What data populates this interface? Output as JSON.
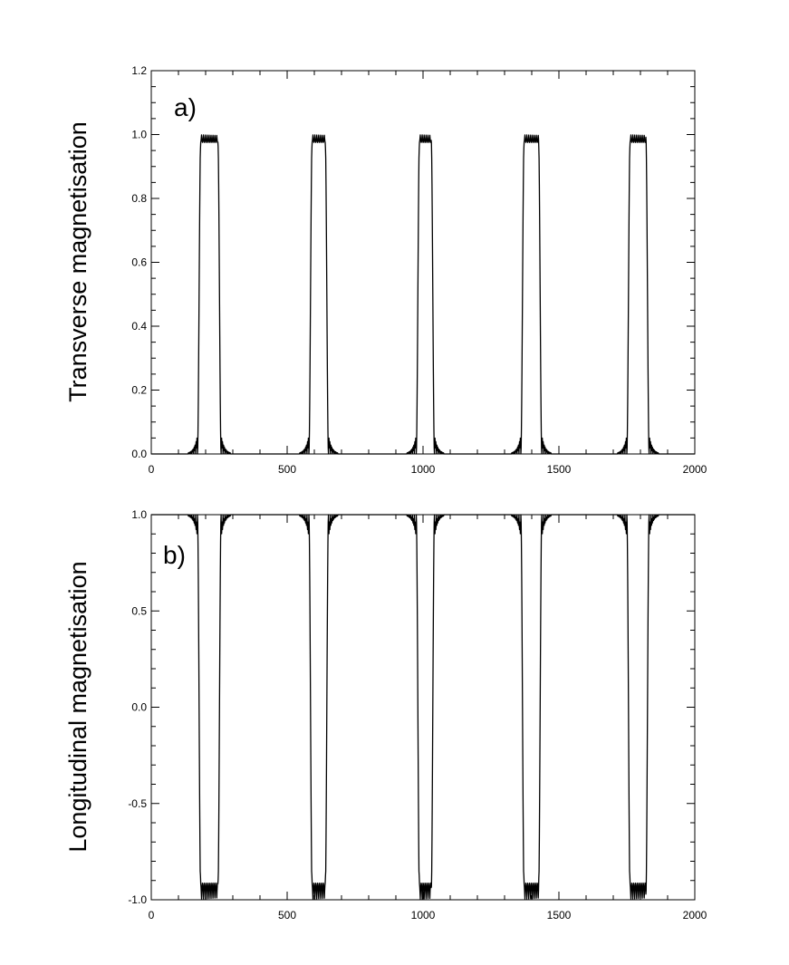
{
  "chart_data": [
    {
      "type": "line",
      "panel_label": "a)",
      "ylabel": "Transverse magnetisation",
      "xlabel": "",
      "xlim": [
        0,
        2000
      ],
      "ylim": [
        0,
        1.2
      ],
      "xticks": [
        0,
        500,
        1000,
        1500,
        2000
      ],
      "xtick_labels": [
        "0",
        "500",
        "1000",
        "1500",
        "2000"
      ],
      "yticks": [
        0,
        0.2,
        0.4,
        0.6,
        0.8,
        1.0,
        1.2
      ],
      "ytick_labels": [
        "0.0",
        "0.2",
        "0.4",
        "0.6",
        "0.8",
        "1.0",
        "1.2"
      ],
      "baseline": 0.0,
      "peak_level": 1.0,
      "pulses": [
        {
          "start": 150,
          "end": 275
        },
        {
          "start": 560,
          "end": 670
        },
        {
          "start": 955,
          "end": 1060
        },
        {
          "start": 1340,
          "end": 1455
        },
        {
          "start": 1730,
          "end": 1850
        }
      ],
      "series": [
        {
          "x": [
            0,
            100,
            160,
            175,
            185,
            200,
            215,
            230,
            240,
            255,
            265,
            275,
            300,
            400,
            500,
            545,
            560,
            570,
            580,
            600,
            620,
            645,
            655,
            665,
            675,
            700,
            850,
            940,
            955,
            960,
            970,
            990,
            1010,
            1040,
            1050,
            1060,
            1070,
            1100,
            1300,
            1330,
            1345,
            1350,
            1365,
            1380,
            1400,
            1420,
            1435,
            1445,
            1455,
            1480,
            1650,
            1720,
            1740,
            1745,
            1760,
            1775,
            1795,
            1815,
            1830,
            1840,
            1850,
            1870,
            2000
          ],
          "y": [
            0.0,
            0.01,
            0.04,
            0.08,
            0.55,
            0.99,
            1.0,
            1.0,
            1.0,
            0.99,
            0.55,
            0.07,
            0.02,
            0.0,
            0.01,
            0.04,
            0.08,
            0.55,
            0.99,
            1.0,
            1.0,
            0.99,
            0.55,
            0.08,
            0.03,
            0.0,
            0.0,
            0.02,
            0.05,
            0.5,
            0.99,
            1.0,
            1.0,
            0.99,
            0.55,
            0.05,
            0.02,
            0.0,
            0.0,
            0.02,
            0.06,
            0.5,
            0.99,
            1.0,
            1.0,
            0.99,
            0.55,
            0.07,
            0.02,
            0.0,
            0.0,
            0.04,
            0.08,
            0.5,
            0.99,
            1.0,
            1.0,
            0.99,
            0.55,
            0.08,
            0.04,
            0.01,
            0.0
          ]
        }
      ]
    },
    {
      "type": "line",
      "panel_label": "b)",
      "ylabel": "Longitudinal magnetisation",
      "xlabel": "",
      "xlim": [
        0,
        2000
      ],
      "ylim": [
        -1.0,
        1.0
      ],
      "xticks": [
        0,
        500,
        1000,
        1500,
        2000
      ],
      "xtick_labels": [
        "0",
        "500",
        "1000",
        "1500",
        "2000"
      ],
      "yticks": [
        -1.0,
        -0.5,
        0.0,
        0.5,
        1.0
      ],
      "ytick_labels": [
        "-1.0",
        "-0.5",
        "0.0",
        "0.5",
        "1.0"
      ],
      "baseline": 1.0,
      "peak_level": -1.0,
      "pulses": [
        {
          "start": 150,
          "end": 275
        },
        {
          "start": 560,
          "end": 670
        },
        {
          "start": 955,
          "end": 1060
        },
        {
          "start": 1340,
          "end": 1455
        },
        {
          "start": 1730,
          "end": 1850
        }
      ],
      "series": [
        {
          "x": [
            0,
            100,
            175,
            185,
            195,
            205,
            215,
            225,
            235,
            245,
            255,
            265,
            280,
            500,
            565,
            575,
            585,
            595,
            605,
            615,
            625,
            635,
            645,
            655,
            670,
            900,
            945,
            955,
            965,
            975,
            985,
            995,
            1005,
            1015,
            1025,
            1035,
            1045,
            1060,
            1300,
            1340,
            1350,
            1360,
            1370,
            1380,
            1390,
            1400,
            1410,
            1420,
            1430,
            1440,
            1455,
            1700,
            1730,
            1740,
            1750,
            1760,
            1770,
            1780,
            1790,
            1800,
            1810,
            1820,
            1830,
            1850,
            1900
          ],
          "y": [
            1.0,
            1.0,
            0.99,
            0.9,
            0.3,
            -0.85,
            -1.0,
            -0.9,
            -0.85,
            0.1,
            0.85,
            0.98,
            1.0,
            1.0,
            0.96,
            0.9,
            0.4,
            -0.85,
            -1.0,
            -0.9,
            -0.9,
            0.2,
            0.88,
            0.95,
            1.0,
            1.0,
            0.98,
            0.92,
            0.4,
            -0.85,
            -1.0,
            -0.9,
            -0.9,
            0.1,
            0.85,
            0.98,
            1.0,
            1.0,
            1.0,
            0.95,
            0.88,
            0.3,
            -0.85,
            -1.0,
            -0.9,
            -0.9,
            0.2,
            0.88,
            0.93,
            0.98,
            1.0,
            1.0,
            0.97,
            0.9,
            0.4,
            -0.85,
            -1.0,
            -0.9,
            -0.9,
            0.1,
            0.85,
            0.97,
            1.0,
            1.0,
            1.0
          ]
        }
      ]
    }
  ]
}
